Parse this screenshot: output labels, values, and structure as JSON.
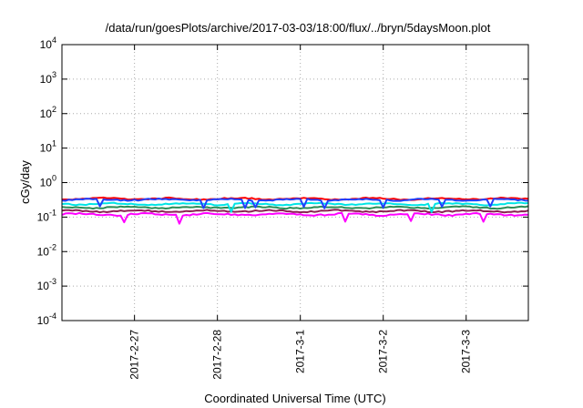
{
  "chart_data": {
    "type": "line",
    "title": "/data/run/goesPlots/archive/2017-03-03/18:00/flux/../bryn/5daysMoon.plot",
    "xlabel": "Coordinated Universal Time (UTC)",
    "ylabel": "cGy/day",
    "yscale": "log",
    "ylim": [
      0.0001,
      10000
    ],
    "y_ticks": [
      {
        "value": 0.0001,
        "base": "10",
        "exp": "-4"
      },
      {
        "value": 0.001,
        "base": "10",
        "exp": "-3"
      },
      {
        "value": 0.01,
        "base": "10",
        "exp": "-2"
      },
      {
        "value": 0.1,
        "base": "10",
        "exp": "-1"
      },
      {
        "value": 1,
        "base": "10",
        "exp": "0"
      },
      {
        "value": 10,
        "base": "10",
        "exp": "1"
      },
      {
        "value": 100,
        "base": "10",
        "exp": "2"
      },
      {
        "value": 1000,
        "base": "10",
        "exp": "3"
      },
      {
        "value": 10000,
        "base": "10",
        "exp": "4"
      }
    ],
    "xlim": [
      "2017-02-26 03:00",
      "2017-03-03 18:00"
    ],
    "x_ticks": [
      {
        "value": "2017-02-27 00:00",
        "label": "2017-2-27"
      },
      {
        "value": "2017-02-28 00:00",
        "label": "2017-2-28"
      },
      {
        "value": "2017-03-01 00:00",
        "label": "2017-3-1"
      },
      {
        "value": "2017-03-02 00:00",
        "label": "2017-3-2"
      },
      {
        "value": "2017-03-03 00:00",
        "label": "2017-3-3"
      }
    ],
    "grid": true,
    "legend": "none",
    "sample_interval_hours": 1,
    "series": [
      {
        "color": "#ff00ff",
        "base": 0.12,
        "amp": 0.06,
        "dips": true
      },
      {
        "color": "#8b2252",
        "base": 0.15,
        "amp": 0.05,
        "dips": false
      },
      {
        "color": "#2e8b57",
        "base": 0.19,
        "amp": 0.05,
        "dips": false
      },
      {
        "color": "#00e5e5",
        "base": 0.24,
        "amp": 0.05,
        "dips": true
      },
      {
        "color": "#ff0000",
        "base": 0.34,
        "amp": 0.05,
        "dips": false
      },
      {
        "color": "#2040ff",
        "base": 0.32,
        "amp": 0.05,
        "dips": true
      }
    ]
  }
}
